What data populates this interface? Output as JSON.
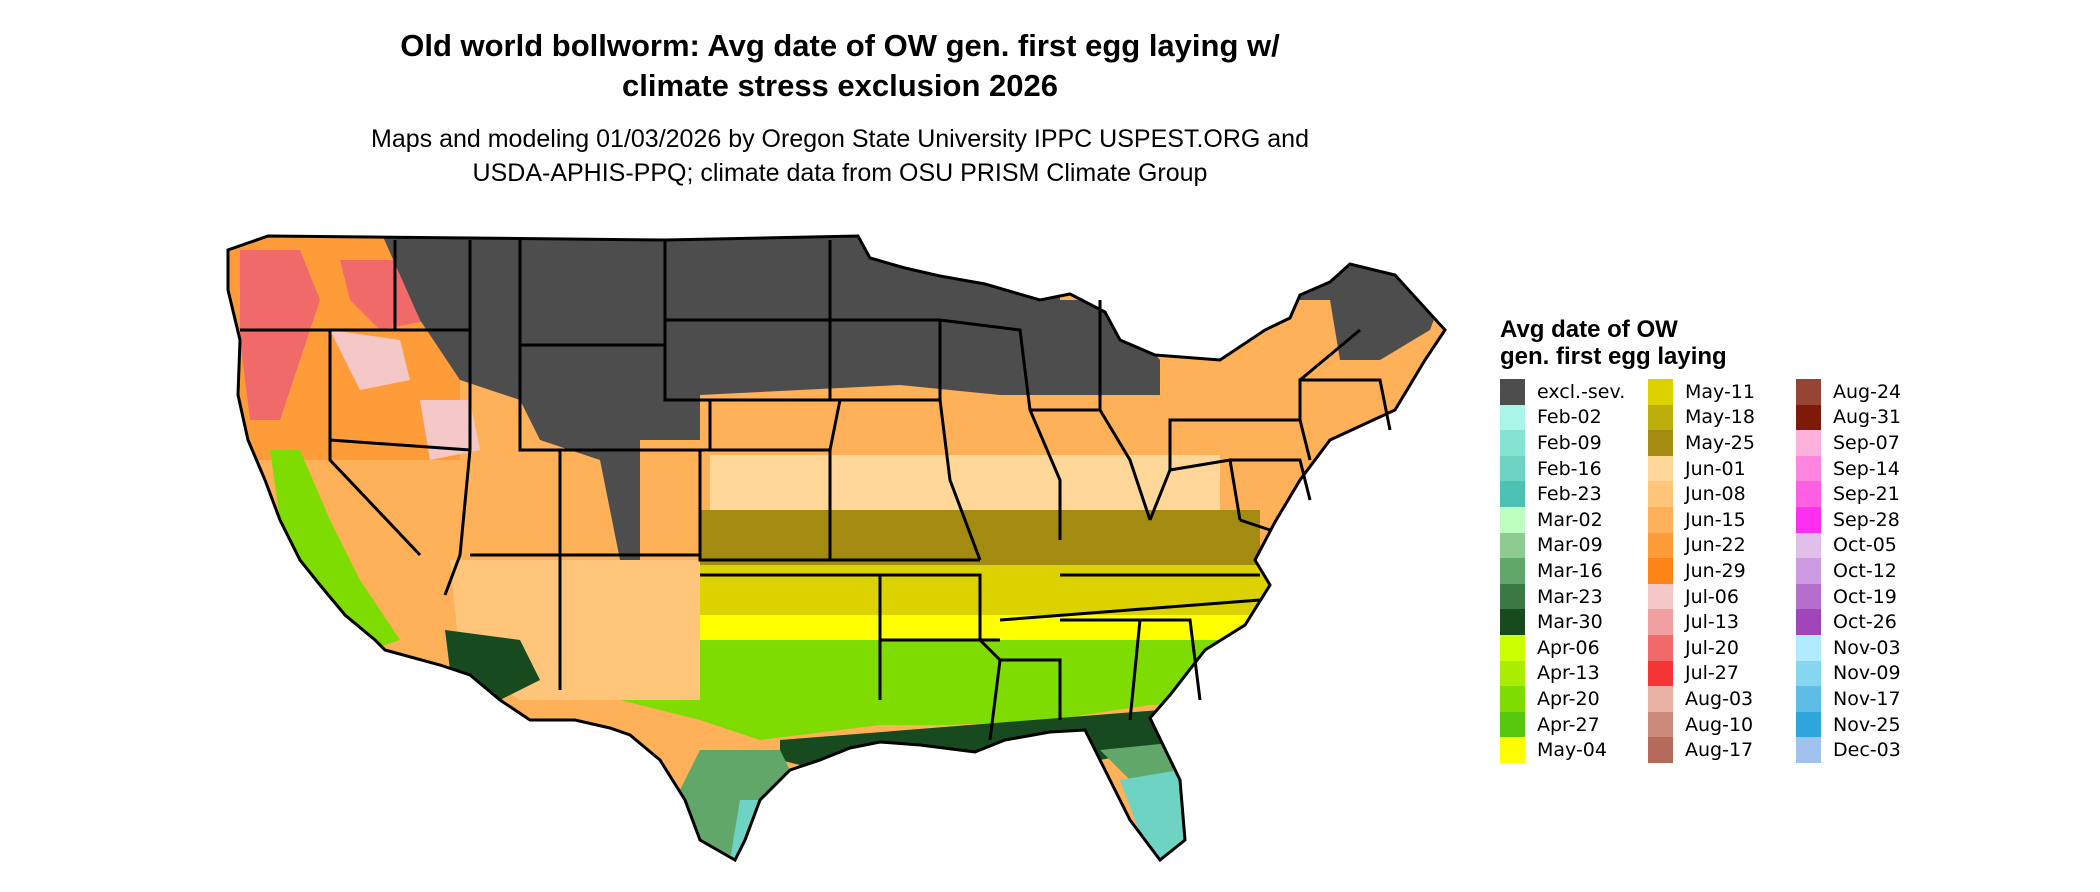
{
  "title_line1": "Old world bollworm: Avg date of OW gen. first egg laying w/",
  "title_line2": "climate stress exclusion 2026",
  "subtitle_line1": "Maps and modeling 01/03/2026 by Oregon State University IPPC USPEST.ORG and",
  "subtitle_line2": "USDA-APHIS-PPQ; climate data from OSU PRISM Climate Group",
  "legend": {
    "title": "Avg date of OW gen. first egg laying",
    "items": [
      {
        "label": "excl.-sev.",
        "color": "#4d4d4d"
      },
      {
        "label": "Feb-02",
        "color": "#aaf5e6"
      },
      {
        "label": "Feb-09",
        "color": "#85e3d2"
      },
      {
        "label": "Feb-16",
        "color": "#6fd3c4"
      },
      {
        "label": "Feb-23",
        "color": "#4cc1b4"
      },
      {
        "label": "Mar-02",
        "color": "#bfffc0"
      },
      {
        "label": "Mar-09",
        "color": "#8fca92"
      },
      {
        "label": "Mar-16",
        "color": "#62a76a"
      },
      {
        "label": "Mar-23",
        "color": "#3a7a44"
      },
      {
        "label": "Mar-30",
        "color": "#174a1f"
      },
      {
        "label": "Apr-06",
        "color": "#ccff00"
      },
      {
        "label": "Apr-13",
        "color": "#a9ee00"
      },
      {
        "label": "Apr-20",
        "color": "#7edc00"
      },
      {
        "label": "Apr-27",
        "color": "#55c70c"
      },
      {
        "label": "May-04",
        "color": "#ffff00"
      },
      {
        "label": "May-11",
        "color": "#dcd200"
      },
      {
        "label": "May-18",
        "color": "#bcae0b"
      },
      {
        "label": "May-25",
        "color": "#a38a11"
      },
      {
        "label": "Jun-01",
        "color": "#ffd899"
      },
      {
        "label": "Jun-08",
        "color": "#ffc57a"
      },
      {
        "label": "Jun-15",
        "color": "#ffb159"
      },
      {
        "label": "Jun-22",
        "color": "#ff9c3a"
      },
      {
        "label": "Jun-29",
        "color": "#ff8418"
      },
      {
        "label": "Jul-06",
        "color": "#f5c8c8"
      },
      {
        "label": "Jul-13",
        "color": "#f0a0a0"
      },
      {
        "label": "Jul-20",
        "color": "#f06a6a"
      },
      {
        "label": "Jul-27",
        "color": "#f53535"
      },
      {
        "label": "Aug-03",
        "color": "#e8b2a5"
      },
      {
        "label": "Aug-10",
        "color": "#cc8a7a"
      },
      {
        "label": "Aug-17",
        "color": "#b36a5a"
      },
      {
        "label": "Aug-24",
        "color": "#964535"
      },
      {
        "label": "Aug-31",
        "color": "#7d1a0a"
      },
      {
        "label": "Sep-07",
        "color": "#ffb1dd"
      },
      {
        "label": "Sep-14",
        "color": "#ff85e0"
      },
      {
        "label": "Sep-21",
        "color": "#ff5fe5"
      },
      {
        "label": "Sep-28",
        "color": "#ff2ef0"
      },
      {
        "label": "Oct-05",
        "color": "#e0c0ea"
      },
      {
        "label": "Oct-12",
        "color": "#cc9ae0"
      },
      {
        "label": "Oct-19",
        "color": "#b46fcc"
      },
      {
        "label": "Oct-26",
        "color": "#a046b8"
      },
      {
        "label": "Nov-03",
        "color": "#b0ecff"
      },
      {
        "label": "Nov-09",
        "color": "#86d6f0"
      },
      {
        "label": "Nov-17",
        "color": "#5ebde6"
      },
      {
        "label": "Nov-25",
        "color": "#2ea6dc"
      },
      {
        "label": "Dec-03",
        "color": "#a0c2ec"
      }
    ]
  },
  "map_colors": {
    "excluded": "#4d4d4d",
    "northwest_orange": "#ff9c3a",
    "northwest_red": "#f06a6a",
    "northwest_pink": "#f5c8c8",
    "plains_orange": "#ffb159",
    "midwest_light": "#ffd899",
    "central_olive": "#a38a11",
    "south_khaki": "#dcd200",
    "south_yellow": "#ffff00",
    "south_green": "#7edc00",
    "gulf_green": "#62a76a",
    "gulf_dark": "#174a1f",
    "florida_teal": "#6fd3c4",
    "cal_green": "#7edc00",
    "southwest_orange": "#ffc57a",
    "border": "#000000"
  }
}
